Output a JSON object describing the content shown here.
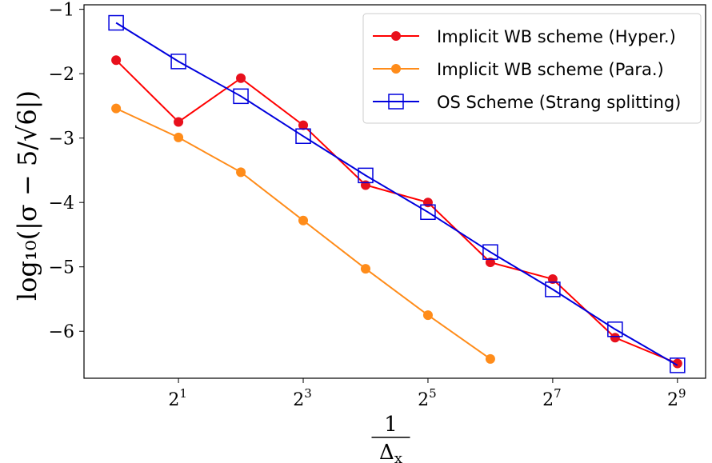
{
  "chart_data": {
    "type": "line",
    "xscale": "log2",
    "x": [
      1,
      2,
      4,
      8,
      16,
      32,
      64,
      128,
      256,
      512
    ],
    "xticks": [
      {
        "value": 2,
        "base": "2",
        "exp": "1"
      },
      {
        "value": 8,
        "base": "2",
        "exp": "3"
      },
      {
        "value": 32,
        "base": "2",
        "exp": "5"
      },
      {
        "value": 128,
        "base": "2",
        "exp": "7"
      },
      {
        "value": 512,
        "base": "2",
        "exp": "9"
      }
    ],
    "yticks": [
      {
        "value": -1,
        "label": "−1"
      },
      {
        "value": -2,
        "label": "−2"
      },
      {
        "value": -3,
        "label": "−3"
      },
      {
        "value": -4,
        "label": "−4"
      },
      {
        "value": -5,
        "label": "−5"
      },
      {
        "value": -6,
        "label": "−6"
      }
    ],
    "xlim": [
      0.7,
      700
    ],
    "ylim": [
      -6.73,
      -0.93
    ],
    "xlabel": {
      "numerator": "1",
      "denominator": "Δ",
      "subscript": "x"
    },
    "ylabel": "log₁₀(|σ − 5/√6|)",
    "legend_position": "top-right",
    "series": [
      {
        "name": "Implicit WB scheme (Hyper.)",
        "color": "#ff0000",
        "marker_color": "#e8101c",
        "marker": "circle",
        "x": [
          1,
          2,
          4,
          8,
          16,
          32,
          64,
          128,
          256,
          512
        ],
        "values": [
          -1.79,
          -2.75,
          -2.07,
          -2.8,
          -3.73,
          -4.0,
          -4.93,
          -5.19,
          -6.1,
          -6.5
        ]
      },
      {
        "name": "Implicit WB scheme (Para.)",
        "color": "#ff8c1a",
        "marker_color": "#ff8c1a",
        "marker": "circle",
        "x": [
          1,
          2,
          4,
          8,
          16,
          32,
          64
        ],
        "values": [
          -2.54,
          -2.99,
          -3.53,
          -4.28,
          -5.03,
          -5.75,
          -6.43
        ]
      },
      {
        "name": "OS Scheme (Strang splitting)",
        "color": "#0000dd",
        "marker_color": "#0000dd",
        "marker": "open-square",
        "x": [
          1,
          2,
          4,
          8,
          16,
          32,
          64,
          128,
          256,
          512
        ],
        "values": [
          -1.21,
          -1.81,
          -2.35,
          -2.97,
          -3.58,
          -4.15,
          -4.77,
          -5.35,
          -5.97,
          -6.53
        ]
      }
    ]
  }
}
